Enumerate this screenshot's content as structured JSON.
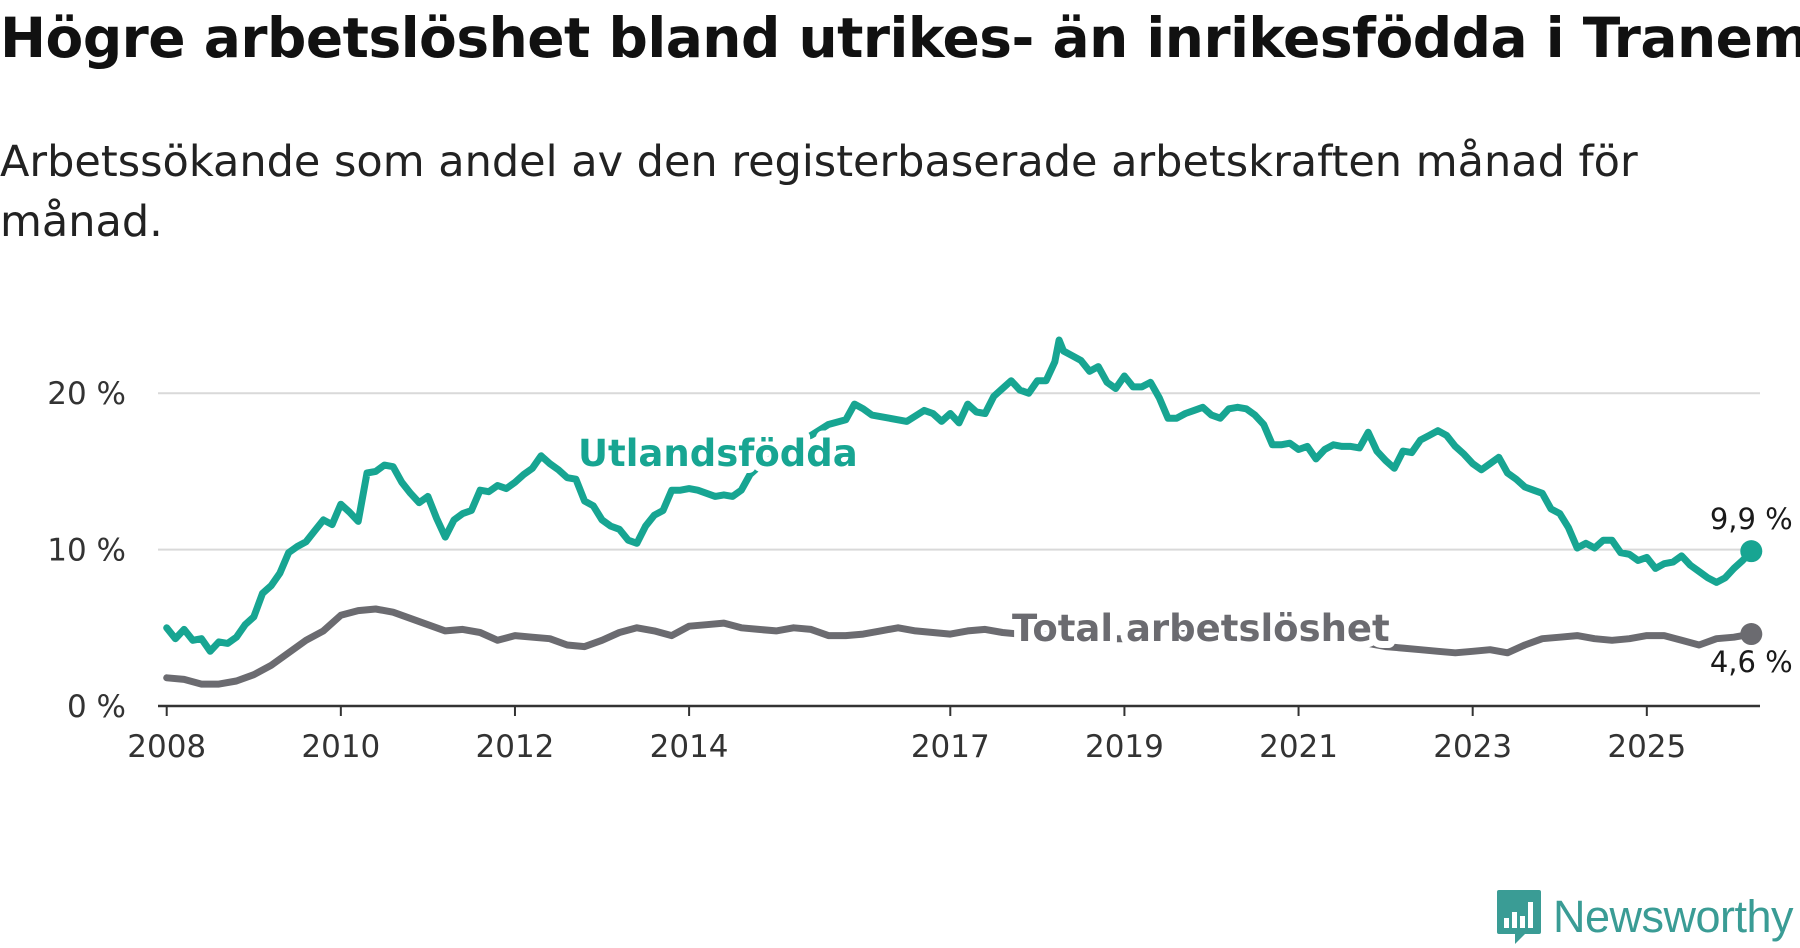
{
  "title": "Högre arbetslöshet bland utrikes- än inrikesfödda i Tranemo",
  "subtitle": "Arbetssökande som andel av den registerbaserade arbetskraften månad för månad.",
  "brand": {
    "name": "Newsworthy",
    "icon": "newsworthy-logo-icon",
    "color": "#3a9c95"
  },
  "chart_data": {
    "type": "line",
    "ylim": [
      0,
      25
    ],
    "xlim": [
      2007.9,
      2026.3
    ],
    "yticks": [
      {
        "value": 0,
        "label": "0 %"
      },
      {
        "value": 10,
        "label": "10 %"
      },
      {
        "value": 20,
        "label": "20 %"
      }
    ],
    "xticks": [
      {
        "value": 2008,
        "label": "2008"
      },
      {
        "value": 2010,
        "label": "2010"
      },
      {
        "value": 2012,
        "label": "2012"
      },
      {
        "value": 2014,
        "label": "2014"
      },
      {
        "value": 2017,
        "label": "2017"
      },
      {
        "value": 2019,
        "label": "2019"
      },
      {
        "value": 2021,
        "label": "2021"
      },
      {
        "value": 2023,
        "label": "2023"
      },
      {
        "value": 2025,
        "label": "2025"
      }
    ],
    "grid": true,
    "series": [
      {
        "name": "Total arbetslöshet",
        "color": "#6b6b70",
        "end_label": "4,6 %",
        "points": [
          [
            2008.0,
            1.8
          ],
          [
            2008.2,
            1.7
          ],
          [
            2008.4,
            1.4
          ],
          [
            2008.6,
            1.4
          ],
          [
            2008.8,
            1.6
          ],
          [
            2009.0,
            2.0
          ],
          [
            2009.2,
            2.6
          ],
          [
            2009.4,
            3.4
          ],
          [
            2009.6,
            4.2
          ],
          [
            2009.8,
            4.8
          ],
          [
            2010.0,
            5.8
          ],
          [
            2010.2,
            6.1
          ],
          [
            2010.4,
            6.2
          ],
          [
            2010.6,
            6.0
          ],
          [
            2010.8,
            5.6
          ],
          [
            2011.0,
            5.2
          ],
          [
            2011.2,
            4.8
          ],
          [
            2011.4,
            4.9
          ],
          [
            2011.6,
            4.7
          ],
          [
            2011.8,
            4.2
          ],
          [
            2012.0,
            4.5
          ],
          [
            2012.2,
            4.4
          ],
          [
            2012.4,
            4.3
          ],
          [
            2012.6,
            3.9
          ],
          [
            2012.8,
            3.8
          ],
          [
            2013.0,
            4.2
          ],
          [
            2013.2,
            4.7
          ],
          [
            2013.4,
            5.0
          ],
          [
            2013.6,
            4.8
          ],
          [
            2013.8,
            4.5
          ],
          [
            2014.0,
            5.1
          ],
          [
            2014.2,
            5.2
          ],
          [
            2014.4,
            5.3
          ],
          [
            2014.6,
            5.0
          ],
          [
            2014.8,
            4.9
          ],
          [
            2015.0,
            4.8
          ],
          [
            2015.2,
            5.0
          ],
          [
            2015.4,
            4.9
          ],
          [
            2015.6,
            4.5
          ],
          [
            2015.8,
            4.5
          ],
          [
            2016.0,
            4.6
          ],
          [
            2016.2,
            4.8
          ],
          [
            2016.4,
            5.0
          ],
          [
            2016.6,
            4.8
          ],
          [
            2016.8,
            4.7
          ],
          [
            2017.0,
            4.6
          ],
          [
            2017.2,
            4.8
          ],
          [
            2017.4,
            4.9
          ],
          [
            2017.6,
            4.7
          ],
          [
            2017.8,
            4.6
          ],
          [
            2018.0,
            4.5
          ],
          [
            2018.2,
            4.6
          ],
          [
            2018.4,
            4.5
          ],
          [
            2018.6,
            4.4
          ],
          [
            2018.8,
            4.3
          ],
          [
            2019.0,
            4.3
          ],
          [
            2019.2,
            4.4
          ],
          [
            2019.4,
            4.5
          ],
          [
            2019.6,
            4.6
          ],
          [
            2019.8,
            4.7
          ],
          [
            2020.0,
            4.9
          ],
          [
            2020.2,
            5.0
          ],
          [
            2020.4,
            4.8
          ],
          [
            2020.6,
            4.6
          ],
          [
            2020.8,
            4.5
          ],
          [
            2021.0,
            4.5
          ],
          [
            2021.2,
            4.4
          ],
          [
            2021.4,
            4.3
          ],
          [
            2021.6,
            4.2
          ],
          [
            2021.8,
            4.0
          ],
          [
            2022.0,
            3.8
          ],
          [
            2022.2,
            3.7
          ],
          [
            2022.4,
            3.6
          ],
          [
            2022.6,
            3.5
          ],
          [
            2022.8,
            3.4
          ],
          [
            2023.0,
            3.5
          ],
          [
            2023.2,
            3.6
          ],
          [
            2023.4,
            3.4
          ],
          [
            2023.6,
            3.9
          ],
          [
            2023.8,
            4.3
          ],
          [
            2024.0,
            4.4
          ],
          [
            2024.2,
            4.5
          ],
          [
            2024.4,
            4.3
          ],
          [
            2024.6,
            4.2
          ],
          [
            2024.8,
            4.3
          ],
          [
            2025.0,
            4.5
          ],
          [
            2025.2,
            4.5
          ],
          [
            2025.4,
            4.2
          ],
          [
            2025.6,
            3.9
          ],
          [
            2025.8,
            4.3
          ],
          [
            2026.0,
            4.4
          ],
          [
            2026.2,
            4.6
          ]
        ]
      },
      {
        "name": "Utlandsfödda",
        "color": "#17a592",
        "end_label": "9,9 %",
        "points": [
          [
            2008.0,
            5.0
          ],
          [
            2008.1,
            4.3
          ],
          [
            2008.2,
            4.9
          ],
          [
            2008.3,
            4.2
          ],
          [
            2008.4,
            4.3
          ],
          [
            2008.5,
            3.5
          ],
          [
            2008.6,
            4.1
          ],
          [
            2008.7,
            4.0
          ],
          [
            2008.8,
            4.4
          ],
          [
            2008.9,
            5.2
          ],
          [
            2009.0,
            5.7
          ],
          [
            2009.1,
            7.2
          ],
          [
            2009.2,
            7.7
          ],
          [
            2009.3,
            8.5
          ],
          [
            2009.4,
            9.8
          ],
          [
            2009.5,
            10.2
          ],
          [
            2009.6,
            10.5
          ],
          [
            2009.7,
            11.2
          ],
          [
            2009.8,
            11.9
          ],
          [
            2009.9,
            11.6
          ],
          [
            2010.0,
            12.9
          ],
          [
            2010.1,
            12.4
          ],
          [
            2010.2,
            11.8
          ],
          [
            2010.3,
            14.9
          ],
          [
            2010.4,
            15.0
          ],
          [
            2010.5,
            15.4
          ],
          [
            2010.6,
            15.3
          ],
          [
            2010.7,
            14.3
          ],
          [
            2010.8,
            13.6
          ],
          [
            2010.9,
            13.0
          ],
          [
            2011.0,
            13.4
          ],
          [
            2011.1,
            12.0
          ],
          [
            2011.2,
            10.8
          ],
          [
            2011.3,
            11.9
          ],
          [
            2011.4,
            12.3
          ],
          [
            2011.5,
            12.5
          ],
          [
            2011.6,
            13.8
          ],
          [
            2011.7,
            13.7
          ],
          [
            2011.8,
            14.1
          ],
          [
            2011.9,
            13.9
          ],
          [
            2012.0,
            14.3
          ],
          [
            2012.1,
            14.8
          ],
          [
            2012.2,
            15.2
          ],
          [
            2012.3,
            16.0
          ],
          [
            2012.4,
            15.5
          ],
          [
            2012.5,
            15.1
          ],
          [
            2012.6,
            14.6
          ],
          [
            2012.7,
            14.5
          ],
          [
            2012.8,
            13.1
          ],
          [
            2012.9,
            12.8
          ],
          [
            2013.0,
            11.9
          ],
          [
            2013.1,
            11.5
          ],
          [
            2013.2,
            11.3
          ],
          [
            2013.3,
            10.6
          ],
          [
            2013.4,
            10.4
          ],
          [
            2013.5,
            11.5
          ],
          [
            2013.6,
            12.2
          ],
          [
            2013.7,
            12.5
          ],
          [
            2013.8,
            13.8
          ],
          [
            2013.9,
            13.8
          ],
          [
            2014.0,
            13.9
          ],
          [
            2014.1,
            13.8
          ],
          [
            2014.2,
            13.6
          ],
          [
            2014.3,
            13.4
          ],
          [
            2014.4,
            13.5
          ],
          [
            2014.5,
            13.4
          ],
          [
            2014.6,
            13.8
          ],
          [
            2014.7,
            14.8
          ],
          [
            2014.8,
            15.3
          ],
          [
            2014.9,
            15.7
          ],
          [
            2015.0,
            16.0
          ],
          [
            2015.2,
            16.6
          ],
          [
            2015.4,
            17.3
          ],
          [
            2015.6,
            18.0
          ],
          [
            2015.8,
            18.3
          ],
          [
            2015.9,
            19.3
          ],
          [
            2016.0,
            19.0
          ],
          [
            2016.1,
            18.6
          ],
          [
            2016.3,
            18.4
          ],
          [
            2016.5,
            18.2
          ],
          [
            2016.7,
            18.9
          ],
          [
            2016.8,
            18.7
          ],
          [
            2016.9,
            18.2
          ],
          [
            2017.0,
            18.7
          ],
          [
            2017.1,
            18.1
          ],
          [
            2017.2,
            19.3
          ],
          [
            2017.3,
            18.8
          ],
          [
            2017.4,
            18.7
          ],
          [
            2017.5,
            19.8
          ],
          [
            2017.6,
            20.3
          ],
          [
            2017.7,
            20.8
          ],
          [
            2017.8,
            20.2
          ],
          [
            2017.9,
            20.0
          ],
          [
            2018.0,
            20.8
          ],
          [
            2018.1,
            20.8
          ],
          [
            2018.2,
            22.0
          ],
          [
            2018.25,
            23.4
          ],
          [
            2018.3,
            22.7
          ],
          [
            2018.4,
            22.4
          ],
          [
            2018.5,
            22.1
          ],
          [
            2018.6,
            21.4
          ],
          [
            2018.7,
            21.7
          ],
          [
            2018.8,
            20.7
          ],
          [
            2018.9,
            20.3
          ],
          [
            2019.0,
            21.1
          ],
          [
            2019.1,
            20.4
          ],
          [
            2019.2,
            20.4
          ],
          [
            2019.3,
            20.7
          ],
          [
            2019.4,
            19.7
          ],
          [
            2019.5,
            18.4
          ],
          [
            2019.6,
            18.4
          ],
          [
            2019.7,
            18.7
          ],
          [
            2019.8,
            18.9
          ],
          [
            2019.9,
            19.1
          ],
          [
            2020.0,
            18.6
          ],
          [
            2020.1,
            18.4
          ],
          [
            2020.2,
            19.0
          ],
          [
            2020.3,
            19.1
          ],
          [
            2020.4,
            19.0
          ],
          [
            2020.5,
            18.6
          ],
          [
            2020.6,
            18.0
          ],
          [
            2020.7,
            16.7
          ],
          [
            2020.8,
            16.7
          ],
          [
            2020.9,
            16.8
          ],
          [
            2021.0,
            16.4
          ],
          [
            2021.1,
            16.6
          ],
          [
            2021.2,
            15.8
          ],
          [
            2021.3,
            16.4
          ],
          [
            2021.4,
            16.7
          ],
          [
            2021.5,
            16.6
          ],
          [
            2021.6,
            16.6
          ],
          [
            2021.7,
            16.5
          ],
          [
            2021.8,
            17.5
          ],
          [
            2021.9,
            16.3
          ],
          [
            2022.0,
            15.7
          ],
          [
            2022.1,
            15.2
          ],
          [
            2022.2,
            16.3
          ],
          [
            2022.3,
            16.2
          ],
          [
            2022.4,
            17.0
          ],
          [
            2022.5,
            17.3
          ],
          [
            2022.6,
            17.6
          ],
          [
            2022.7,
            17.3
          ],
          [
            2022.8,
            16.6
          ],
          [
            2022.9,
            16.1
          ],
          [
            2023.0,
            15.5
          ],
          [
            2023.1,
            15.1
          ],
          [
            2023.2,
            15.5
          ],
          [
            2023.3,
            15.9
          ],
          [
            2023.4,
            14.9
          ],
          [
            2023.5,
            14.5
          ],
          [
            2023.6,
            14.0
          ],
          [
            2023.7,
            13.8
          ],
          [
            2023.8,
            13.6
          ],
          [
            2023.9,
            12.6
          ],
          [
            2024.0,
            12.3
          ],
          [
            2024.1,
            11.4
          ],
          [
            2024.2,
            10.1
          ],
          [
            2024.3,
            10.4
          ],
          [
            2024.4,
            10.1
          ],
          [
            2024.5,
            10.6
          ],
          [
            2024.6,
            10.6
          ],
          [
            2024.7,
            9.8
          ],
          [
            2024.8,
            9.7
          ],
          [
            2024.9,
            9.3
          ],
          [
            2025.0,
            9.5
          ],
          [
            2025.1,
            8.8
          ],
          [
            2025.2,
            9.1
          ],
          [
            2025.3,
            9.2
          ],
          [
            2025.4,
            9.6
          ],
          [
            2025.5,
            9.0
          ],
          [
            2025.6,
            8.6
          ],
          [
            2025.7,
            8.2
          ],
          [
            2025.8,
            7.9
          ],
          [
            2025.9,
            8.2
          ],
          [
            2026.0,
            8.8
          ],
          [
            2026.1,
            9.3
          ],
          [
            2026.2,
            9.9
          ]
        ]
      }
    ],
    "annotations": [
      {
        "text": "Utlandsfödda",
        "series": "Utlandsfödda"
      },
      {
        "text": "Total arbetslöshet",
        "series": "Total arbetslöshet"
      }
    ]
  }
}
